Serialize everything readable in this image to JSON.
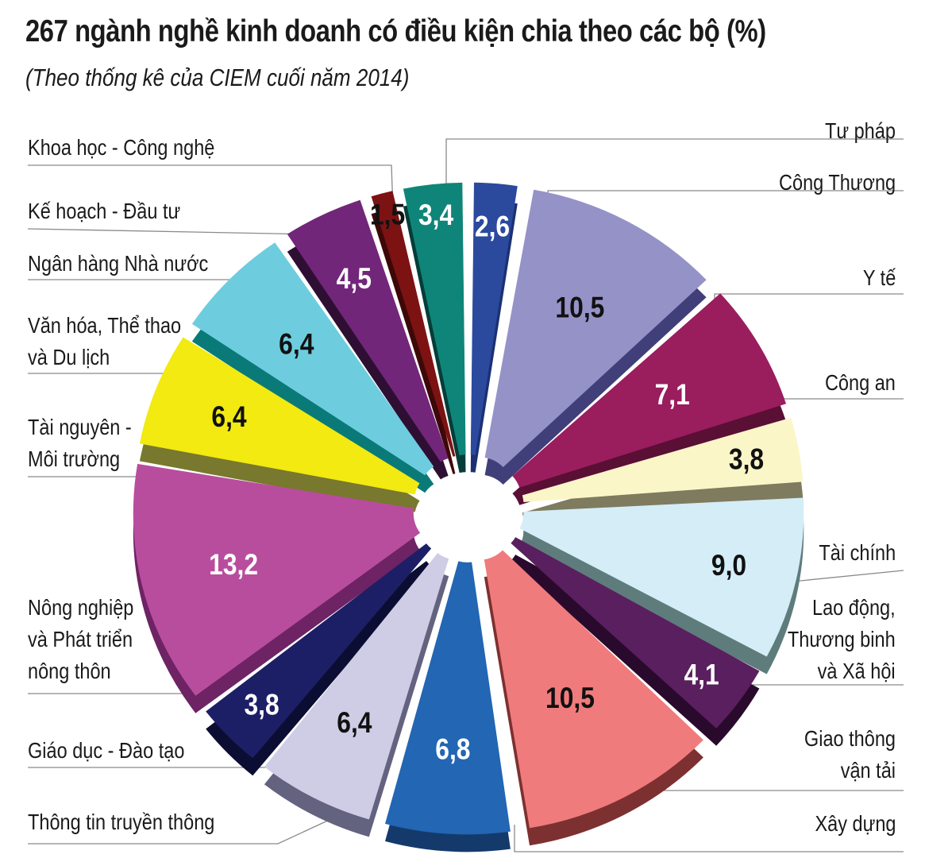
{
  "title": "267 ngành nghề kinh doanh có điều kiện chia theo các bộ (%)",
  "subtitle": "(Theo thống kê của CIEM cuối năm 2014)",
  "chart_data": {
    "type": "pie",
    "title": "267 ngành nghề kinh doanh có điều kiện chia theo các bộ (%)",
    "subtitle": "(Theo thống kê của CIEM cuối năm 2014)",
    "unit": "%",
    "slices": [
      {
        "label": [
          "Tư pháp"
        ],
        "value": 2.6,
        "value_label": "2,6",
        "color": "#2b4a9e",
        "side": "#1c3173"
      },
      {
        "label": [
          "Công Thương"
        ],
        "value": 10.5,
        "value_label": "10,5",
        "color": "#9592c8",
        "side": "#413f7a"
      },
      {
        "label": [
          "Y tế"
        ],
        "value": 7.1,
        "value_label": "7,1",
        "color": "#9a1d5e",
        "side": "#5a0f35"
      },
      {
        "label": [
          "Công an"
        ],
        "value": 3.8,
        "value_label": "3,8",
        "color": "#fbf6c8",
        "side": "#7f7b5f"
      },
      {
        "label": [
          "Tài chính"
        ],
        "value": 9.0,
        "value_label": "9,0",
        "color": "#d4edf7",
        "side": "#5f7c7c"
      },
      {
        "label": [
          "Lao động,",
          "Thương binh",
          "và Xã hội"
        ],
        "value": 4.1,
        "value_label": "4,1",
        "color": "#5a1f5e",
        "side": "#2a0a2c"
      },
      {
        "label": [
          "Giao thông",
          "vận tải"
        ],
        "value": 10.5,
        "value_label": "10,5",
        "color": "#f07b7c",
        "side": "#7d3030"
      },
      {
        "label": [
          "Xây dựng"
        ],
        "value": 6.8,
        "value_label": "6,8",
        "color": "#2266b4",
        "side": "#143a6b"
      },
      {
        "label": [
          "Thông tin truyền thông"
        ],
        "value": 6.4,
        "value_label": "6,4",
        "color": "#cfcde5",
        "side": "#63627f"
      },
      {
        "label": [
          "Giáo dục - Đào tạo"
        ],
        "value": 3.8,
        "value_label": "3,8",
        "color": "#1d1f66",
        "side": "#0c0d33"
      },
      {
        "label": [
          "Nông nghiệp",
          "và Phát triển",
          "nông thôn"
        ],
        "value": 13.2,
        "value_label": "13,2",
        "color": "#b84d9e",
        "side": "#6e2364"
      },
      {
        "label": [
          "Tài nguyên -",
          "Môi trường"
        ],
        "value": 6.4,
        "value_label": "6,4",
        "color": "#f2ea10",
        "side": "#78782e"
      },
      {
        "label": [
          "Văn hóa, Thể thao",
          "và Du lịch"
        ],
        "value": 6.4,
        "value_label": "6,4",
        "color": "#6dcddf",
        "side": "#0a7a78"
      },
      {
        "label": [
          "Ngân hàng Nhà nước"
        ],
        "value": 4.5,
        "value_label": "4,5",
        "color": "#72267a",
        "side": "#2e0f33"
      },
      {
        "label": [
          "Kế hoạch - Đầu tư"
        ],
        "value": 1.5,
        "value_label": "1,5",
        "color": "#7d1212",
        "side": "#3d0808"
      },
      {
        "label": [
          "Khoa học - Công nghệ"
        ],
        "value": 3.4,
        "value_label": "3,4",
        "color": "#0f8579",
        "side": "#063d38"
      }
    ]
  }
}
